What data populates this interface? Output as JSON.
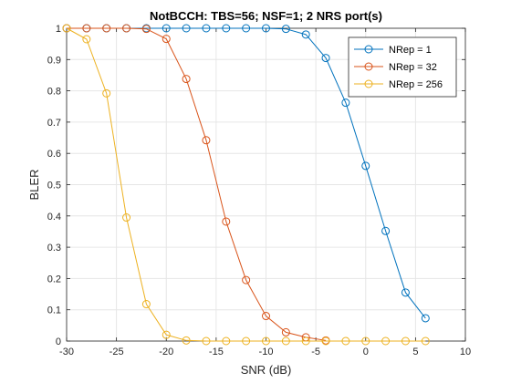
{
  "chart_data": {
    "type": "line",
    "title": "NotBCCH: TBS=56; NSF=1; 2 NRS port(s)",
    "xlabel": "SNR (dB)",
    "ylabel": "BLER",
    "xlim": [
      -30,
      10
    ],
    "ylim": [
      0,
      1
    ],
    "xticks": [
      -30,
      -25,
      -20,
      -15,
      -10,
      -5,
      0,
      5,
      10
    ],
    "xtick_labels": [
      "-30",
      "-25",
      "-20",
      "-15",
      "-10",
      "-5",
      "0",
      "5",
      "10"
    ],
    "yticks": [
      0,
      0.1,
      0.2,
      0.3,
      0.4,
      0.5,
      0.6,
      0.7,
      0.8,
      0.9,
      1
    ],
    "ytick_labels": [
      "0",
      "0.1",
      "0.2",
      "0.3",
      "0.4",
      "0.5",
      "0.6",
      "0.7",
      "0.8",
      "0.9",
      "1"
    ],
    "grid": true,
    "legend_position": "top-right",
    "marker": "circle",
    "series": [
      {
        "name": "NRep = 1",
        "color": "#0072BD",
        "x": [
          -30,
          -28,
          -26,
          -24,
          -22,
          -20,
          -18,
          -16,
          -14,
          -12,
          -10,
          -8,
          -6,
          -4,
          -2,
          0,
          2,
          4,
          6
        ],
        "y": [
          1,
          1,
          1,
          1,
          1,
          1,
          1,
          1,
          1,
          1,
          1,
          0.998,
          0.98,
          0.905,
          0.762,
          0.56,
          0.352,
          0.155,
          0.073
        ]
      },
      {
        "name": "NRep = 32",
        "color": "#D95319",
        "x": [
          -30,
          -28,
          -26,
          -24,
          -22,
          -20,
          -18,
          -16,
          -14,
          -12,
          -10,
          -8,
          -6,
          -4
        ],
        "y": [
          1,
          1,
          1,
          1,
          0.998,
          0.966,
          0.838,
          0.642,
          0.382,
          0.195,
          0.08,
          0.028,
          0.012,
          0.002
        ]
      },
      {
        "name": "NRep = 256",
        "color": "#EDB120",
        "x": [
          -30,
          -28,
          -26,
          -24,
          -22,
          -20,
          -18,
          -16,
          -14,
          -12,
          -10,
          -8,
          -6,
          -4,
          -2,
          0,
          2,
          4,
          6
        ],
        "y": [
          1,
          0.965,
          0.792,
          0.395,
          0.118,
          0.02,
          0.002,
          0,
          0,
          0,
          0,
          0,
          0,
          0,
          0,
          0,
          0,
          0,
          0
        ]
      }
    ]
  }
}
